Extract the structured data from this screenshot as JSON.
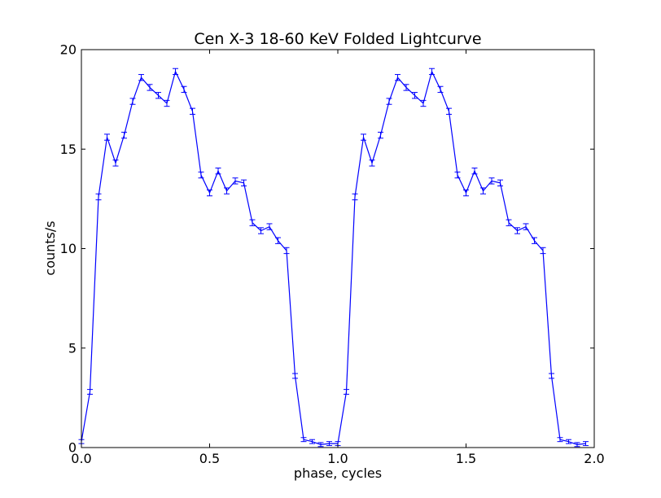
{
  "chart_data": {
    "type": "line",
    "title": "Cen X-3 18-60 KeV Folded Lightcurve",
    "xlabel": "phase, cycles",
    "ylabel": "counts/s",
    "xlim": [
      0.0,
      2.0
    ],
    "ylim": [
      0,
      20
    ],
    "xticks": [
      0.0,
      0.5,
      1.0,
      1.5,
      2.0
    ],
    "xtick_labels": [
      "0.0",
      "0.5",
      "1.0",
      "1.5",
      "2.0"
    ],
    "yticks": [
      0,
      5,
      10,
      15,
      20
    ],
    "ytick_labels": [
      "0",
      "5",
      "10",
      "15",
      "20"
    ],
    "grid": false,
    "line_color": "#0000ff",
    "series": [
      {
        "x": [
          0.0,
          0.0333,
          0.0667,
          0.1,
          0.1333,
          0.1667,
          0.2,
          0.2333,
          0.2667,
          0.3,
          0.3333,
          0.3667,
          0.4,
          0.4333,
          0.4667,
          0.5,
          0.5333,
          0.5667,
          0.6,
          0.6333,
          0.6667,
          0.7,
          0.7333,
          0.7667,
          0.8,
          0.8333,
          0.8667,
          0.9,
          0.9333,
          0.9667,
          1.0,
          1.0333,
          1.0667,
          1.1,
          1.1333,
          1.1667,
          1.2,
          1.2333,
          1.2667,
          1.3,
          1.3333,
          1.3667,
          1.4,
          1.4333,
          1.4667,
          1.5,
          1.5333,
          1.5667,
          1.6,
          1.6333,
          1.6667,
          1.7,
          1.7333,
          1.7667,
          1.8,
          1.8333,
          1.8667,
          1.9,
          1.9333,
          1.9667
        ],
        "y": [
          0.3,
          2.8,
          12.6,
          15.6,
          14.3,
          15.7,
          17.4,
          18.6,
          18.1,
          17.7,
          17.3,
          18.9,
          18.0,
          16.9,
          13.7,
          12.8,
          13.9,
          12.9,
          13.4,
          13.3,
          11.3,
          10.9,
          11.1,
          10.4,
          9.9,
          3.6,
          0.4,
          0.3,
          0.15,
          0.2,
          0.2,
          2.8,
          12.6,
          15.6,
          14.3,
          15.7,
          17.4,
          18.6,
          18.1,
          17.7,
          17.3,
          18.9,
          18.0,
          16.9,
          13.7,
          12.8,
          13.9,
          12.9,
          13.4,
          13.3,
          11.3,
          10.9,
          11.1,
          10.4,
          9.9,
          3.6,
          0.4,
          0.3,
          0.15,
          0.2
        ],
        "yerr": [
          0.1,
          0.12,
          0.15,
          0.15,
          0.15,
          0.15,
          0.15,
          0.15,
          0.15,
          0.15,
          0.15,
          0.15,
          0.15,
          0.15,
          0.15,
          0.15,
          0.15,
          0.15,
          0.15,
          0.15,
          0.15,
          0.15,
          0.15,
          0.15,
          0.15,
          0.12,
          0.1,
          0.1,
          0.1,
          0.1,
          0.1,
          0.12,
          0.15,
          0.15,
          0.15,
          0.15,
          0.15,
          0.15,
          0.15,
          0.15,
          0.15,
          0.15,
          0.15,
          0.15,
          0.15,
          0.15,
          0.15,
          0.15,
          0.15,
          0.15,
          0.15,
          0.15,
          0.15,
          0.15,
          0.15,
          0.12,
          0.1,
          0.1,
          0.1,
          0.1
        ]
      }
    ]
  }
}
